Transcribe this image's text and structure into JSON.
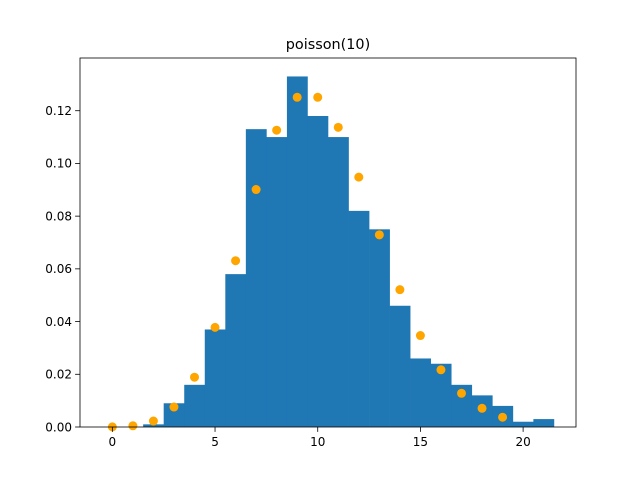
{
  "chart_data": {
    "type": "bar",
    "title": "poisson(10)",
    "xlabel": "",
    "ylabel": "",
    "xlim": [
      -1.575,
      22.575
    ],
    "ylim": [
      0,
      0.14
    ],
    "xticks": [
      0,
      5,
      10,
      15,
      20
    ],
    "yticks": [
      0.0,
      0.02,
      0.04,
      0.06,
      0.08,
      0.1,
      0.12
    ],
    "ytick_labels": [
      "0.00",
      "0.02",
      "0.04",
      "0.06",
      "0.08",
      "0.10",
      "0.12"
    ],
    "grid": false,
    "legend": "none",
    "histogram": {
      "bin_start": 1.5,
      "bin_width": 1.0,
      "values": [
        0.001,
        0.009,
        0.016,
        0.037,
        0.058,
        0.113,
        0.11,
        0.133,
        0.118,
        0.11,
        0.082,
        0.075,
        0.046,
        0.026,
        0.024,
        0.016,
        0.012,
        0.008,
        0.002,
        0.003
      ],
      "color": "#1f77b4"
    },
    "pmf_points": {
      "x": [
        0,
        1,
        2,
        3,
        4,
        5,
        6,
        7,
        8,
        9,
        10,
        11,
        12,
        13,
        14,
        15,
        16,
        17,
        18,
        19
      ],
      "y": [
        4.54e-05,
        0.000454,
        0.00227,
        0.00757,
        0.0189,
        0.0378,
        0.0631,
        0.0901,
        0.1126,
        0.1251,
        0.1251,
        0.1137,
        0.0948,
        0.0729,
        0.0521,
        0.0347,
        0.0217,
        0.0128,
        0.0071,
        0.0037
      ],
      "color": "#ffa500"
    }
  }
}
